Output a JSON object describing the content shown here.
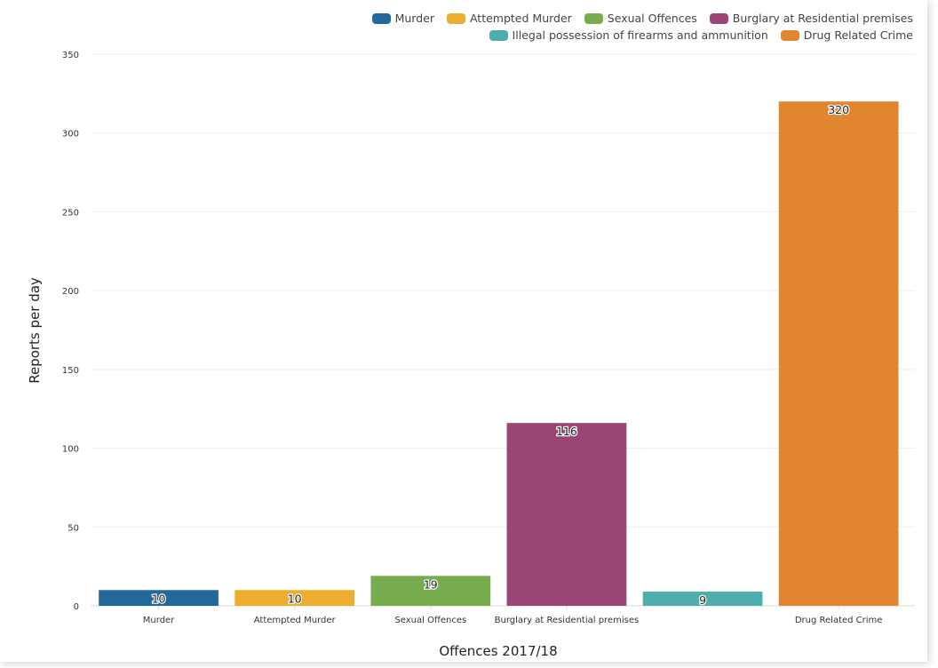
{
  "chart_data": {
    "type": "bar",
    "title": "",
    "xlabel": "Offences 2017/18",
    "ylabel": "Reports per day",
    "ylim": [
      0,
      350
    ],
    "yticks": [
      0,
      50,
      100,
      150,
      200,
      250,
      300,
      350
    ],
    "grid": true,
    "legend_position": "top-right",
    "categories": [
      "Murder",
      "Attempted Murder",
      "Sexual Offences",
      "Burglary at Residential premises",
      "Illegal possession of firearms and ammunition",
      "Drug Related Crime"
    ],
    "tick_labels": [
      "Murder",
      "Attempted Murder",
      "Sexual Offences",
      "Burglary at Residential premises",
      "",
      "Drug Related Crime"
    ],
    "values": [
      10,
      10,
      19,
      116,
      9,
      320
    ],
    "colors": [
      "#22699a",
      "#edad2e",
      "#78ad4f",
      "#9b4574",
      "#4eaeab",
      "#e2852f"
    ]
  }
}
